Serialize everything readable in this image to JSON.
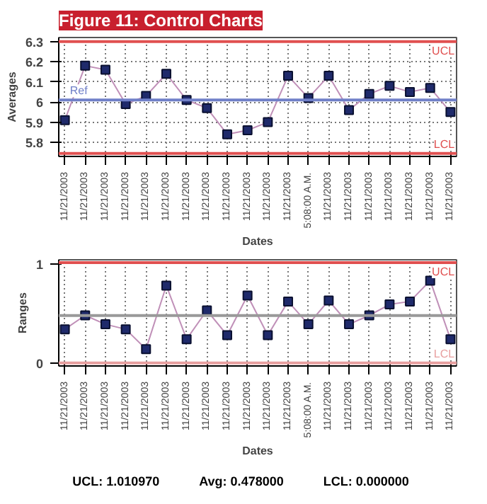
{
  "chart_data": [
    {
      "type": "line",
      "title": "Figure 11: Control Charts",
      "xlabel": "Dates",
      "ylabel": "Averages",
      "categories": [
        "11/21/2003",
        "11/21/2003",
        "11/21/2003",
        "11/21/2003",
        "11/21/2003",
        "11/21/2003",
        "11/21/2003",
        "11/21/2003",
        "11/21/2003",
        "11/21/2003",
        "11/21/2003",
        "11/21/2003",
        "5:08:00 A.M.",
        "11/21/2003",
        "11/21/2003",
        "11/21/2003",
        "11/21/2003",
        "11/21/2003",
        "11/21/2003",
        "11/21/2003"
      ],
      "series": [
        {
          "color": "#1f2a6b",
          "values": [
            5.91,
            6.18,
            6.16,
            5.99,
            6.03,
            6.14,
            6.01,
            5.97,
            5.84,
            5.86,
            5.9,
            6.13,
            6.02,
            6.13,
            5.96,
            6.04,
            6.08,
            6.05,
            6.07,
            5.95
          ]
        }
      ],
      "ylim": [
        5.73,
        6.32
      ],
      "yticks": [
        {
          "value": 5.8,
          "label": "5.8"
        },
        {
          "value": 5.9,
          "label": "5.9"
        },
        {
          "value": 6.0,
          "label": "6"
        },
        {
          "value": 6.1,
          "label": "6.1"
        },
        {
          "value": 6.2,
          "label": "6.2"
        },
        {
          "value": 6.3,
          "label": "6.3"
        }
      ],
      "ref_lines": [
        {
          "axis": "y",
          "value": 6.3,
          "label": "UCL",
          "color": "#e05050"
        },
        {
          "axis": "y",
          "value": 6.01,
          "label": "Ref",
          "color": "#7080c8"
        },
        {
          "axis": "y",
          "value": 5.745,
          "label": "LCL",
          "color": "#e05050"
        }
      ],
      "grid": true,
      "marker": "square",
      "line_style": "solid"
    },
    {
      "type": "line",
      "xlabel": "Dates",
      "ylabel": "Ranges",
      "categories": [
        "11/21/2003",
        "11/21/2003",
        "11/21/2003",
        "11/21/2003",
        "11/21/2003",
        "11/21/2003",
        "11/21/2003",
        "11/21/2003",
        "11/21/2003",
        "11/21/2003",
        "11/21/2003",
        "11/21/2003",
        "5:08:00 A.M.",
        "11/21/2003",
        "11/21/2003",
        "11/21/2003",
        "11/21/2003",
        "11/21/2003",
        "11/21/2003",
        "11/21/2003"
      ],
      "series": [
        {
          "color": "#1f2a6b",
          "values": [
            0.34,
            0.48,
            0.39,
            0.34,
            0.14,
            0.78,
            0.24,
            0.53,
            0.28,
            0.68,
            0.28,
            0.62,
            0.39,
            0.63,
            0.39,
            0.48,
            0.59,
            0.62,
            0.83,
            0.24
          ]
        }
      ],
      "ylim": [
        -0.03,
        1.04
      ],
      "yticks": [
        0,
        1
      ],
      "ref_lines": [
        {
          "axis": "y",
          "value": 1.01097,
          "label": "UCL",
          "color": "#e05050"
        },
        {
          "axis": "y",
          "value": 0.478,
          "color": "#999999"
        },
        {
          "axis": "y",
          "value": 0,
          "label": "LCL",
          "color": "#e8a0a0"
        }
      ],
      "annotations": [
        "UCL: 1.010970",
        "Avg: 0.478000",
        "LCL: 0.000000"
      ],
      "grid": "x",
      "marker": "square",
      "line_style": "solid"
    }
  ]
}
